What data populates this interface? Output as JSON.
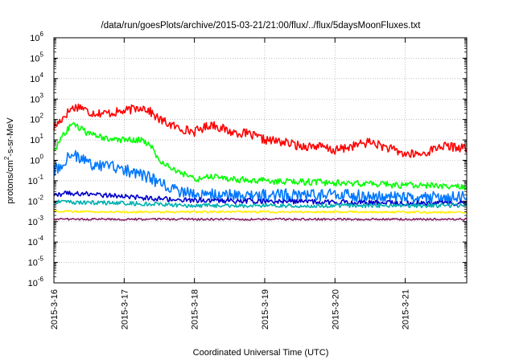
{
  "chart_data": {
    "type": "line",
    "title": "/data/run/goesPlots/archive/2015-03-21/21:00/flux/../flux/5daysMoonFluxes.txt",
    "xlabel": "Coordinated Universal Time (UTC)",
    "ylabel": "protons/cm2-s-sr-MeV",
    "ylabel_parts": {
      "pre": "protons/cm",
      "sup": "2",
      "post": "-s-sr-MeV"
    },
    "y_scale": "log",
    "ylim": [
      1e-06,
      1000000.0
    ],
    "x_start": "2015-3-16",
    "x_end": "2015-3-21 21:00",
    "grid": true,
    "x_ticks": [
      {
        "date": "2015-3-16",
        "label": "2015-3-16"
      },
      {
        "date": "2015-3-17",
        "label": "2015-3-17"
      },
      {
        "date": "2015-3-18",
        "label": "2015-3-18"
      },
      {
        "date": "2015-3-19",
        "label": "2015-3-19"
      },
      {
        "date": "2015-3-20",
        "label": "2015-3-20"
      },
      {
        "date": "2015-3-21",
        "label": "2015-3-21"
      }
    ],
    "y_ticks": [
      {
        "value": 1e-06,
        "base": "10",
        "exp": "-6"
      },
      {
        "value": 1e-05,
        "base": "10",
        "exp": "-5"
      },
      {
        "value": 0.0001,
        "base": "10",
        "exp": "-4"
      },
      {
        "value": 0.001,
        "base": "10",
        "exp": "-3"
      },
      {
        "value": 0.01,
        "base": "10",
        "exp": "-2"
      },
      {
        "value": 0.1,
        "base": "10",
        "exp": "-1"
      },
      {
        "value": 1.0,
        "base": "10",
        "exp": "0"
      },
      {
        "value": 10.0,
        "base": "10",
        "exp": "1"
      },
      {
        "value": 100.0,
        "base": "10",
        "exp": "2"
      },
      {
        "value": 1000.0,
        "base": "10",
        "exp": "3"
      },
      {
        "value": 10000.0,
        "base": "10",
        "exp": "4"
      },
      {
        "value": 100000.0,
        "base": "10",
        "exp": "5"
      },
      {
        "value": 1000000.0,
        "base": "10",
        "exp": "6"
      }
    ],
    "series": [
      {
        "color": "#ff0000",
        "noise": 0.22,
        "points": [
          [
            "2015-3-16 00:00",
            40
          ],
          [
            "2015-3-16 03:00",
            120
          ],
          [
            "2015-3-16 06:00",
            350
          ],
          [
            "2015-3-16 09:00",
            450
          ],
          [
            "2015-3-16 12:00",
            220
          ],
          [
            "2015-3-16 18:00",
            200
          ],
          [
            "2015-3-17 00:00",
            250
          ],
          [
            "2015-3-17 06:00",
            420
          ],
          [
            "2015-3-17 08:00",
            300
          ],
          [
            "2015-3-17 12:00",
            100
          ],
          [
            "2015-3-17 18:00",
            40
          ],
          [
            "2015-3-18 00:00",
            25
          ],
          [
            "2015-3-18 06:00",
            60
          ],
          [
            "2015-3-18 12:00",
            25
          ],
          [
            "2015-3-18 18:00",
            20
          ],
          [
            "2015-3-19 00:00",
            10
          ],
          [
            "2015-3-19 06:00",
            8
          ],
          [
            "2015-3-19 12:00",
            5
          ],
          [
            "2015-3-19 18:00",
            5
          ],
          [
            "2015-3-20 00:00",
            3
          ],
          [
            "2015-3-20 06:00",
            5
          ],
          [
            "2015-3-20 12:00",
            8
          ],
          [
            "2015-3-20 18:00",
            4
          ],
          [
            "2015-3-21 00:00",
            2
          ],
          [
            "2015-3-21 06:00",
            2
          ],
          [
            "2015-3-21 12:00",
            5
          ],
          [
            "2015-3-21 21:00",
            4
          ]
        ]
      },
      {
        "color": "#00ff00",
        "noise": 0.16,
        "points": [
          [
            "2015-3-16 00:00",
            3
          ],
          [
            "2015-3-16 03:00",
            15
          ],
          [
            "2015-3-16 06:00",
            60
          ],
          [
            "2015-3-16 09:00",
            35
          ],
          [
            "2015-3-16 12:00",
            18
          ],
          [
            "2015-3-16 18:00",
            12
          ],
          [
            "2015-3-17 00:00",
            10
          ],
          [
            "2015-3-17 06:00",
            10
          ],
          [
            "2015-3-17 09:00",
            5
          ],
          [
            "2015-3-17 12:00",
            1
          ],
          [
            "2015-3-17 18:00",
            0.3
          ],
          [
            "2015-3-18 00:00",
            0.12
          ],
          [
            "2015-3-18 06:00",
            0.15
          ],
          [
            "2015-3-18 12:00",
            0.12
          ],
          [
            "2015-3-18 18:00",
            0.11
          ],
          [
            "2015-3-19 00:00",
            0.1
          ],
          [
            "2015-3-19 12:00",
            0.09
          ],
          [
            "2015-3-20 00:00",
            0.08
          ],
          [
            "2015-3-20 12:00",
            0.07
          ],
          [
            "2015-3-21 00:00",
            0.06
          ],
          [
            "2015-3-21 12:00",
            0.055
          ],
          [
            "2015-3-21 21:00",
            0.05
          ]
        ]
      },
      {
        "color": "#0077ff",
        "noise": 0.3,
        "points": [
          [
            "2015-3-16 00:00",
            0.3
          ],
          [
            "2015-3-16 03:00",
            0.8
          ],
          [
            "2015-3-16 06:00",
            2
          ],
          [
            "2015-3-16 09:00",
            1.2
          ],
          [
            "2015-3-16 12:00",
            0.7
          ],
          [
            "2015-3-16 18:00",
            0.5
          ],
          [
            "2015-3-17 00:00",
            0.35
          ],
          [
            "2015-3-17 06:00",
            0.2
          ],
          [
            "2015-3-17 12:00",
            0.08
          ],
          [
            "2015-3-17 18:00",
            0.03
          ],
          [
            "2015-3-18 00:00",
            0.02
          ],
          [
            "2015-3-18 12:00",
            0.02
          ],
          [
            "2015-3-19 00:00",
            0.02
          ],
          [
            "2015-3-20 00:00",
            0.02
          ],
          [
            "2015-3-21 00:00",
            0.015
          ],
          [
            "2015-3-21 21:00",
            0.015
          ]
        ]
      },
      {
        "color": "#0000cc",
        "noise": 0.12,
        "points": [
          [
            "2015-3-16 00:00",
            0.02
          ],
          [
            "2015-3-16 06:00",
            0.025
          ],
          [
            "2015-3-17 00:00",
            0.017
          ],
          [
            "2015-3-17 12:00",
            0.013
          ],
          [
            "2015-3-18 00:00",
            0.011
          ],
          [
            "2015-3-19 00:00",
            0.01
          ],
          [
            "2015-3-20 00:00",
            0.009
          ],
          [
            "2015-3-21 00:00",
            0.008
          ],
          [
            "2015-3-21 21:00",
            0.008
          ]
        ]
      },
      {
        "color": "#00b0b0",
        "noise": 0.1,
        "points": [
          [
            "2015-3-16 00:00",
            0.009
          ],
          [
            "2015-3-17 00:00",
            0.008
          ],
          [
            "2015-3-18 00:00",
            0.006
          ],
          [
            "2015-3-19 00:00",
            0.006
          ],
          [
            "2015-3-20 00:00",
            0.006
          ],
          [
            "2015-3-21 21:00",
            0.006
          ]
        ]
      },
      {
        "color": "#ffee00",
        "noise": 0.05,
        "points": [
          [
            "2015-3-16 00:00",
            0.0032
          ],
          [
            "2015-3-17 00:00",
            0.003
          ],
          [
            "2015-3-18 00:00",
            0.003
          ],
          [
            "2015-3-19 00:00",
            0.003
          ],
          [
            "2015-3-20 00:00",
            0.003
          ],
          [
            "2015-3-21 21:00",
            0.0028
          ]
        ]
      },
      {
        "color": "#882266",
        "noise": 0.05,
        "points": [
          [
            "2015-3-16 00:00",
            0.0013
          ],
          [
            "2015-3-17 00:00",
            0.0013
          ],
          [
            "2015-3-18 00:00",
            0.0013
          ],
          [
            "2015-3-19 00:00",
            0.0013
          ],
          [
            "2015-3-20 00:00",
            0.0013
          ],
          [
            "2015-3-21 21:00",
            0.0013
          ]
        ]
      }
    ]
  }
}
